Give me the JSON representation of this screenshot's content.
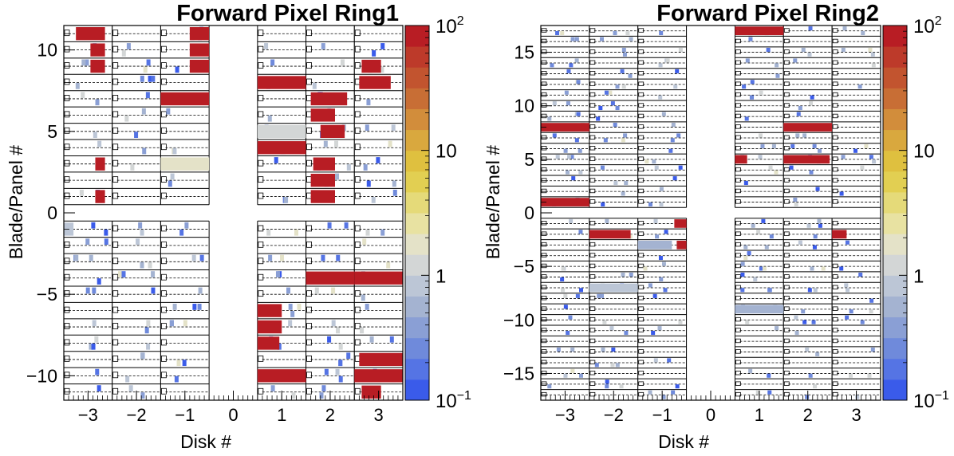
{
  "colorbar": {
    "stops": [
      "#3a5bea",
      "#5574e4",
      "#6f8adb",
      "#8a9fd5",
      "#a4b3d1",
      "#bcc6d6",
      "#d3d6d6",
      "#e4e2c8",
      "#e8e2a2",
      "#e5da79",
      "#e2cf52",
      "#dfc03f",
      "#d9a83e",
      "#d28d3b",
      "#c86e35",
      "#c2542f",
      "#bd3a2a",
      "#b81d24"
    ],
    "ticks": [
      {
        "base": "10",
        "exp": "2",
        "pos": 1.0
      },
      {
        "base": "10",
        "exp": "",
        "pos": 0.6667
      },
      {
        "base": "1",
        "exp": "",
        "pos": 0.3333
      },
      {
        "base": "10",
        "exp": "−1",
        "pos": 0.0
      }
    ]
  },
  "chart_data": [
    {
      "type": "heatmap",
      "title": "Forward Pixel Ring1",
      "xlabel": "Disk #",
      "ylabel": "Blade/Panel #",
      "x_ticks": [
        "−3",
        "−2",
        "−1",
        "0",
        "1",
        "2",
        "3"
      ],
      "y_ticks": [
        {
          "label": "10",
          "value": 10
        },
        {
          "label": "5",
          "value": 5
        },
        {
          "label": "0",
          "value": 0
        },
        {
          "label": "−5",
          "value": -5
        },
        {
          "label": "−10",
          "value": -10
        }
      ],
      "xlim": [
        -3.5,
        3.5
      ],
      "ylim": [
        -11.5,
        11.5
      ],
      "n_blades": 11,
      "z_scale": "log",
      "z_range": [
        0.1,
        100
      ],
      "hot_cells": [
        {
          "disk": -3,
          "blade": 11,
          "x0": 0.25,
          "x1": 0.85,
          "value": 100
        },
        {
          "disk": -3,
          "blade": 10,
          "x0": 0.55,
          "x1": 0.85,
          "value": 100
        },
        {
          "disk": -3,
          "blade": 9,
          "x0": 0.55,
          "x1": 0.85,
          "value": 100
        },
        {
          "disk": -3,
          "blade": 3,
          "x0": 0.65,
          "x1": 0.85,
          "value": 100
        },
        {
          "disk": -3,
          "blade": 1,
          "x0": 0.65,
          "x1": 0.85,
          "value": 100
        },
        {
          "disk": -1,
          "blade": 11,
          "x0": 0.6,
          "x1": 1.0,
          "value": 100
        },
        {
          "disk": -1,
          "blade": 10,
          "x0": 0.6,
          "x1": 1.0,
          "value": 100
        },
        {
          "disk": -1,
          "blade": 9,
          "x0": 0.6,
          "x1": 1.0,
          "value": 100
        },
        {
          "disk": -1,
          "blade": 7,
          "x0": 0.0,
          "x1": 1.0,
          "value": 100
        },
        {
          "disk": -1,
          "blade": 3,
          "x0": 0.0,
          "x1": 1.0,
          "value": 1.5
        },
        {
          "disk": 1,
          "blade": 8,
          "x0": 0.0,
          "x1": 1.0,
          "value": 100
        },
        {
          "disk": 1,
          "blade": 4,
          "x0": 0.0,
          "x1": 1.0,
          "value": 100
        },
        {
          "disk": 1,
          "blade": 5,
          "x0": 0.0,
          "x1": 1.0,
          "value": 1.2
        },
        {
          "disk": 2,
          "blade": 7,
          "x0": 0.1,
          "x1": 0.85,
          "value": 100
        },
        {
          "disk": 2,
          "blade": 6,
          "x0": 0.1,
          "x1": 0.6,
          "value": 100
        },
        {
          "disk": 2,
          "blade": 5,
          "x0": 0.3,
          "x1": 0.8,
          "value": 100
        },
        {
          "disk": 2,
          "blade": 3,
          "x0": 0.15,
          "x1": 0.6,
          "value": 100
        },
        {
          "disk": 2,
          "blade": 2,
          "x0": 0.1,
          "x1": 0.6,
          "value": 100
        },
        {
          "disk": 2,
          "blade": 1,
          "x0": 0.1,
          "x1": 0.6,
          "value": 100
        },
        {
          "disk": 3,
          "blade": 9,
          "x0": 0.15,
          "x1": 0.55,
          "value": 100
        },
        {
          "disk": 3,
          "blade": 8,
          "x0": 0.1,
          "x1": 0.75,
          "value": 100
        },
        {
          "disk": -3,
          "blade": -1,
          "x0": 0.0,
          "x1": 0.2,
          "value": 0.8
        },
        {
          "disk": 1,
          "blade": -6,
          "x0": 0.0,
          "x1": 0.5,
          "value": 100
        },
        {
          "disk": 1,
          "blade": -7,
          "x0": 0.0,
          "x1": 0.5,
          "value": 100
        },
        {
          "disk": 1,
          "blade": -8,
          "x0": 0.0,
          "x1": 0.45,
          "value": 100
        },
        {
          "disk": 1,
          "blade": -10,
          "x0": 0.0,
          "x1": 1.0,
          "value": 100
        },
        {
          "disk": 2,
          "blade": -4,
          "x0": 0.0,
          "x1": 1.0,
          "value": 100
        },
        {
          "disk": 3,
          "blade": -4,
          "x0": 0.0,
          "x1": 1.0,
          "value": 100
        },
        {
          "disk": 3,
          "blade": -9,
          "x0": 0.1,
          "x1": 1.0,
          "value": 100
        },
        {
          "disk": 3,
          "blade": -10,
          "x0": 0.0,
          "x1": 1.0,
          "value": 100
        },
        {
          "disk": 3,
          "blade": -11,
          "x0": 0.15,
          "x1": 0.55,
          "value": 100
        }
      ]
    },
    {
      "type": "heatmap",
      "title": "Forward Pixel Ring2",
      "xlabel": "Disk #",
      "ylabel": "Blade/Panel #",
      "x_ticks": [
        "−3",
        "−2",
        "−1",
        "0",
        "1",
        "2",
        "3"
      ],
      "y_ticks": [
        {
          "label": "15",
          "value": 15
        },
        {
          "label": "10",
          "value": 10
        },
        {
          "label": "5",
          "value": 5
        },
        {
          "label": "0",
          "value": 0
        },
        {
          "label": "−5",
          "value": -5
        },
        {
          "label": "−10",
          "value": -10
        },
        {
          "label": "−15",
          "value": -15
        }
      ],
      "xlim": [
        -3.5,
        3.5
      ],
      "ylim": [
        -17.5,
        17.5
      ],
      "n_blades": 17,
      "z_scale": "log",
      "z_range": [
        0.1,
        100
      ],
      "hot_cells": [
        {
          "disk": 1,
          "blade": 17,
          "x0": 0.0,
          "x1": 1.0,
          "value": 100
        },
        {
          "disk": -3,
          "blade": 8,
          "x0": 0.0,
          "x1": 1.0,
          "value": 100
        },
        {
          "disk": 2,
          "blade": 8,
          "x0": 0.0,
          "x1": 1.0,
          "value": 100
        },
        {
          "disk": 1,
          "blade": 5,
          "x0": 0.0,
          "x1": 0.25,
          "value": 100
        },
        {
          "disk": 2,
          "blade": 5,
          "x0": 0.0,
          "x1": 0.95,
          "value": 100
        },
        {
          "disk": -3,
          "blade": 1,
          "x0": 0.0,
          "x1": 1.0,
          "value": 100
        },
        {
          "disk": -2,
          "blade": -2,
          "x0": 0.0,
          "x1": 0.85,
          "value": 100
        },
        {
          "disk": -1,
          "blade": -1,
          "x0": 0.75,
          "x1": 1.0,
          "value": 100
        },
        {
          "disk": -1,
          "blade": -3,
          "x0": 0.8,
          "x1": 1.0,
          "value": 100
        },
        {
          "disk": 3,
          "blade": -2,
          "x0": 0.0,
          "x1": 0.3,
          "value": 100
        },
        {
          "disk": -2,
          "blade": -7,
          "x0": 0.0,
          "x1": 1.0,
          "value": 0.8
        },
        {
          "disk": -1,
          "blade": -3,
          "x0": 0.0,
          "x1": 0.7,
          "value": 0.6
        },
        {
          "disk": 1,
          "blade": -9,
          "x0": 0.0,
          "x1": 1.0,
          "value": 0.5
        }
      ]
    }
  ]
}
